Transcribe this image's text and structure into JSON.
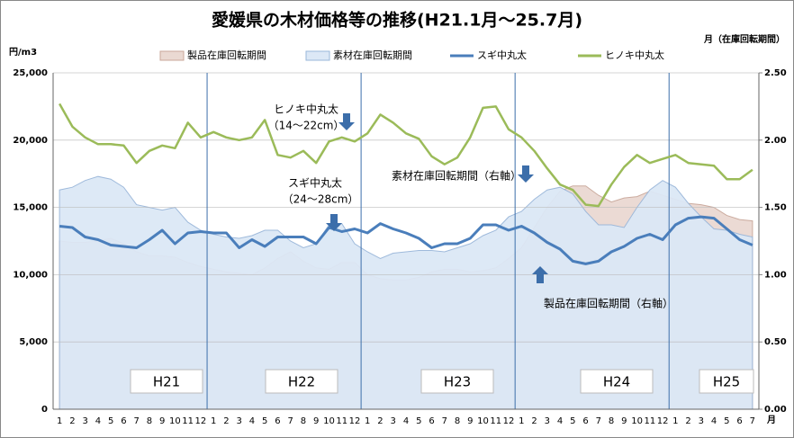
{
  "chart_data": {
    "type": "combo",
    "title": "愛媛県の木材価格等の推移(H21.1月～25.7月)",
    "y_label": "円/m3",
    "y2_label": "月（在庫回転期間）",
    "x_label": "月",
    "categories": [
      "1",
      "2",
      "3",
      "4",
      "5",
      "6",
      "7",
      "8",
      "9",
      "10",
      "11",
      "12",
      "1",
      "2",
      "3",
      "4",
      "5",
      "6",
      "7",
      "8",
      "9",
      "10",
      "11",
      "12",
      "1",
      "2",
      "3",
      "4",
      "5",
      "6",
      "7",
      "8",
      "9",
      "10",
      "11",
      "12",
      "1",
      "2",
      "3",
      "4",
      "5",
      "6",
      "7",
      "8",
      "9",
      "10",
      "11",
      "12",
      "1",
      "2",
      "3",
      "4",
      "5",
      "6",
      "7"
    ],
    "eras": [
      "H21",
      "H22",
      "H23",
      "H24",
      "H25"
    ],
    "ylim": [
      0,
      25000
    ],
    "yticks": [
      0,
      {
        "value": 5000,
        "label": "5,000"
      },
      {
        "value": 10000,
        "label": "10,000"
      },
      {
        "value": 15000,
        "label": "15,000"
      },
      {
        "value": 20000,
        "label": "20,000"
      },
      {
        "value": 25000,
        "label": "25,000"
      }
    ],
    "y2lim": [
      0,
      2.5
    ],
    "y2ticks": [
      {
        "value": 0,
        "label": "0.00"
      },
      {
        "value": 0.5,
        "label": "0.50"
      },
      {
        "value": 1,
        "label": "1.00"
      },
      {
        "value": 1.5,
        "label": "1.50"
      },
      {
        "value": 2,
        "label": "2.00"
      },
      {
        "value": 2.5,
        "label": "2.50"
      }
    ],
    "series": [
      {
        "name": "製品在庫回転期間",
        "kind": "area",
        "axis": "y2",
        "color": "#ead9d2",
        "values": [
          1.25,
          1.24,
          1.24,
          1.25,
          1.27,
          1.23,
          1.17,
          1.14,
          1.14,
          1.13,
          1.09,
          1.06,
          1.04,
          1.02,
          1.01,
          1.0,
          1.05,
          1.12,
          1.17,
          1.1,
          1.05,
          1.04,
          1.09,
          1.09,
          1.0,
          0.97,
          0.96,
          0.96,
          0.98,
          1.02,
          1.04,
          1.04,
          1.02,
          1.03,
          1.05,
          1.12,
          1.2,
          1.35,
          1.5,
          1.62,
          1.66,
          1.66,
          1.59,
          1.54,
          1.57,
          1.58,
          1.62,
          1.59,
          1.56,
          1.53,
          1.52,
          1.5,
          1.44,
          1.41,
          1.4
        ]
      },
      {
        "name": "素材在庫回転期間",
        "kind": "area",
        "axis": "y2",
        "color": "#dce8f6",
        "values": [
          1.63,
          1.65,
          1.7,
          1.73,
          1.71,
          1.65,
          1.52,
          1.5,
          1.48,
          1.5,
          1.39,
          1.33,
          1.3,
          1.28,
          1.27,
          1.29,
          1.33,
          1.33,
          1.25,
          1.2,
          1.23,
          1.37,
          1.38,
          1.23,
          1.17,
          1.12,
          1.16,
          1.17,
          1.18,
          1.18,
          1.17,
          1.2,
          1.23,
          1.29,
          1.33,
          1.43,
          1.47,
          1.56,
          1.63,
          1.65,
          1.6,
          1.47,
          1.37,
          1.37,
          1.35,
          1.5,
          1.63,
          1.7,
          1.65,
          1.53,
          1.43,
          1.34,
          1.33,
          1.3,
          1.28
        ]
      },
      {
        "name": "スギ中丸太",
        "kind": "line",
        "color": "#4a7ebb",
        "values": [
          13600,
          13500,
          12800,
          12600,
          12200,
          12100,
          12000,
          12600,
          13300,
          12300,
          13100,
          13200,
          13100,
          13100,
          12000,
          12600,
          12100,
          12800,
          12800,
          12800,
          12300,
          13500,
          13200,
          13400,
          13100,
          13800,
          13400,
          13100,
          12700,
          12000,
          12300,
          12300,
          12700,
          13700,
          13700,
          13300,
          13600,
          13100,
          12400,
          11900,
          11000,
          10800,
          11000,
          11700,
          12100,
          12700,
          13000,
          12600,
          13700,
          14200,
          14300,
          14200,
          13400,
          12600,
          12200
        ]
      },
      {
        "name": "ヒノキ中丸太",
        "kind": "line",
        "color": "#9bbb59",
        "values": [
          22700,
          21000,
          20200,
          19700,
          19700,
          19600,
          18300,
          19200,
          19600,
          19400,
          21300,
          20200,
          20600,
          20200,
          20000,
          20200,
          21500,
          18900,
          18700,
          19200,
          18300,
          19900,
          20200,
          19900,
          20500,
          21900,
          21300,
          20500,
          20100,
          18800,
          18200,
          18700,
          20200,
          22400,
          22500,
          20800,
          20200,
          19200,
          17900,
          16700,
          16300,
          15200,
          15100,
          16700,
          18000,
          18900,
          18300,
          18600,
          18900,
          18300,
          18200,
          18100,
          17100,
          17100,
          17800
        ]
      }
    ],
    "annotations": [
      "ヒノキ中丸太",
      "（14～22cm）",
      "スギ中丸太",
      "（24～28cm）",
      "素材在庫回転期間（右軸）",
      "製品在庫回転期間（右軸）"
    ],
    "grid": true,
    "legend": "top"
  }
}
